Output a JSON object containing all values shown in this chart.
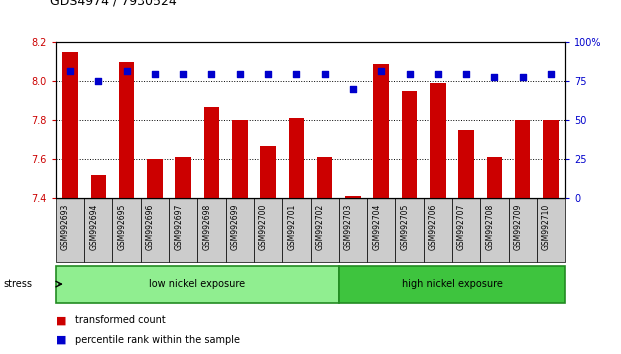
{
  "title": "GDS4974 / 7930524",
  "samples": [
    "GSM992693",
    "GSM992694",
    "GSM992695",
    "GSM992696",
    "GSM992697",
    "GSM992698",
    "GSM992699",
    "GSM992700",
    "GSM992701",
    "GSM992702",
    "GSM992703",
    "GSM992704",
    "GSM992705",
    "GSM992706",
    "GSM992707",
    "GSM992708",
    "GSM992709",
    "GSM992710"
  ],
  "transformed_count": [
    8.15,
    7.52,
    8.1,
    7.6,
    7.61,
    7.87,
    7.8,
    7.67,
    7.81,
    7.61,
    7.41,
    8.09,
    7.95,
    7.99,
    7.75,
    7.61,
    7.8,
    7.8
  ],
  "percentile_rank": [
    82,
    75,
    82,
    80,
    80,
    80,
    80,
    80,
    80,
    80,
    70,
    82,
    80,
    80,
    80,
    78,
    78,
    80
  ],
  "bar_color": "#cc0000",
  "dot_color": "#0000cc",
  "ylim_left": [
    7.4,
    8.2
  ],
  "ylim_right": [
    0,
    100
  ],
  "yticks_left": [
    7.4,
    7.6,
    7.8,
    8.0,
    8.2
  ],
  "yticks_right": [
    0,
    25,
    50,
    75,
    100
  ],
  "ytick_labels_right": [
    "0",
    "25",
    "50",
    "75",
    "100%"
  ],
  "group_low": {
    "label": "low nickel exposure",
    "start": 0,
    "end": 9,
    "color": "#90ee90"
  },
  "group_high": {
    "label": "high nickel exposure",
    "start": 10,
    "end": 17,
    "color": "#3ec43e"
  },
  "stress_label": "stress",
  "legend_items": [
    {
      "label": "transformed count",
      "color": "#cc0000"
    },
    {
      "label": "percentile rank within the sample",
      "color": "#0000cc"
    }
  ],
  "background_color": "#ffffff",
  "tick_label_color_left": "#cc0000",
  "tick_label_color_right": "#0000cc",
  "xlabel_bg": "#cccccc",
  "title_fontsize": 9
}
